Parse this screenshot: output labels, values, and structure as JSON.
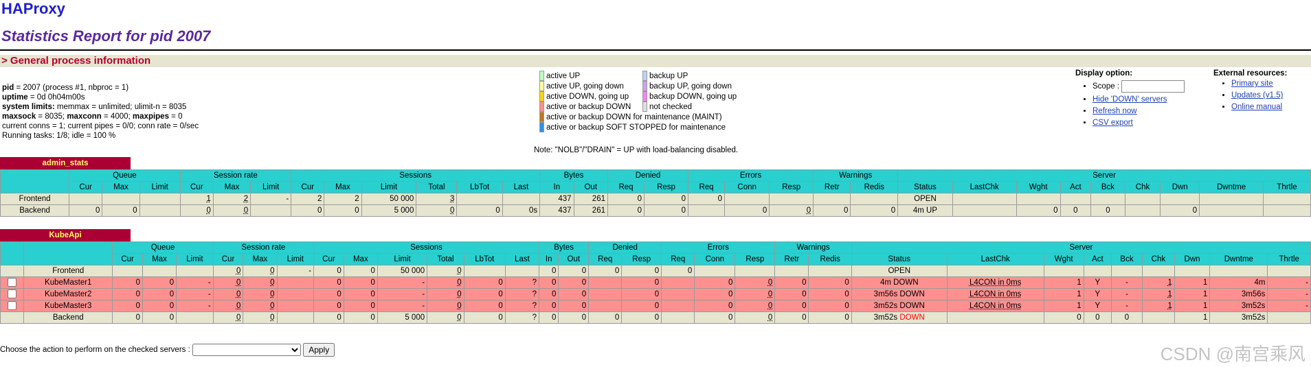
{
  "logo": "HAProxy",
  "title": "Statistics Report for pid 2007",
  "section": "> General process information",
  "info": [
    {
      "b": "pid",
      "t": " = 2007 (process #1, nbproc = 1)"
    },
    {
      "b": "uptime",
      "t": " = 0d 0h04m00s"
    },
    {
      "b": "system limits:",
      "t": " memmax = unlimited; ulimit-n = 8035"
    },
    {
      "b": "maxsock",
      "t": " = 8035; ",
      "b2": "maxconn",
      "t2": " = 4000; ",
      "b3": "maxpipes",
      "t3": " = 0"
    },
    {
      "t": "current conns = 1; current pipes = 0/0; conn rate = 0/sec"
    },
    {
      "t": "Running tasks: 1/8; idle = 100 %"
    }
  ],
  "legend_left": [
    {
      "label": "active UP",
      "color": "#c0ffc0"
    },
    {
      "label": "active UP, going down",
      "color": "#ffffa0"
    },
    {
      "label": "active DOWN, going up",
      "color": "#ffd020"
    },
    {
      "label": "active or backup DOWN",
      "color": "#ff9090"
    },
    {
      "label": "active or backup DOWN for maintenance (MAINT)",
      "color": "#c07820"
    },
    {
      "label": "active or backup SOFT STOPPED for maintenance",
      "color": "#3090e0"
    }
  ],
  "legend_right": [
    {
      "label": "backup UP",
      "color": "#c0d0ff"
    },
    {
      "label": "backup UP, going down",
      "color": "#d0a0ff"
    },
    {
      "label": "backup DOWN, going up",
      "color": "#ff80ff"
    },
    {
      "label": "not checked",
      "color": "#e0e0e0"
    }
  ],
  "legend_note": "Note: \"NOLB\"/\"DRAIN\" = UP with load-balancing disabled.",
  "display": {
    "heading": "Display option:",
    "scope_label": "Scope :",
    "scope_value": "",
    "links": [
      "Hide 'DOWN' servers",
      "Refresh now",
      "CSV export"
    ]
  },
  "external": {
    "heading": "External resources:",
    "links": [
      "Primary site",
      "Updates (v1.5)",
      "Online manual"
    ]
  },
  "proxies": [
    {
      "name": "admin_stats",
      "groups": [
        "Queue",
        "Session rate",
        "Sessions",
        "Bytes",
        "Denied",
        "Errors",
        "Warnings",
        "Server"
      ],
      "cols": [
        "Cur",
        "Max",
        "Limit",
        "Cur",
        "Max",
        "Limit",
        "Cur",
        "Max",
        "Limit",
        "Total",
        "LbTot",
        "Last",
        "In",
        "Out",
        "Req",
        "Resp",
        "Req",
        "Conn",
        "Resp",
        "Retr",
        "Redis",
        "Status",
        "LastChk",
        "Wght",
        "Act",
        "Bck",
        "Chk",
        "Dwn",
        "Dwntme",
        "Thrtle"
      ],
      "rows": [
        {
          "kind": "fe",
          "name": "Frontend",
          "cells": [
            "",
            "",
            "",
            "1",
            "2",
            "-",
            "2",
            "2",
            "50 000",
            "3",
            "",
            "",
            "437",
            "261",
            "0",
            "0",
            "0",
            "",
            "",
            "",
            "",
            "OPEN",
            "",
            "",
            "",
            "",
            "",
            "",
            "",
            ""
          ]
        },
        {
          "kind": "be",
          "name": "Backend",
          "cells": [
            "0",
            "0",
            "",
            "0",
            "0",
            "",
            "0",
            "0",
            "5 000",
            "0",
            "0",
            "0s",
            "437",
            "261",
            "0",
            "0",
            "",
            "0",
            "0",
            "0",
            "0",
            "4m UP",
            "",
            "0",
            "0",
            "0",
            "",
            "0",
            "",
            ""
          ]
        }
      ]
    },
    {
      "name": "KubeApi",
      "groups": [
        "Queue",
        "Session rate",
        "Sessions",
        "Bytes",
        "Denied",
        "Errors",
        "Warnings",
        "Server"
      ],
      "cols": [
        "Cur",
        "Max",
        "Limit",
        "Cur",
        "Max",
        "Limit",
        "Cur",
        "Max",
        "Limit",
        "Total",
        "LbTot",
        "Last",
        "In",
        "Out",
        "Req",
        "Resp",
        "Req",
        "Conn",
        "Resp",
        "Retr",
        "Redis",
        "Status",
        "LastChk",
        "Wght",
        "Act",
        "Bck",
        "Chk",
        "Dwn",
        "Dwntme",
        "Thrtle"
      ],
      "rows": [
        {
          "kind": "fe",
          "name": "Frontend",
          "cells": [
            "",
            "",
            "",
            "0",
            "0",
            "-",
            "0",
            "0",
            "50 000",
            "0",
            "",
            "",
            "0",
            "0",
            "0",
            "0",
            "0",
            "",
            "",
            "",
            "",
            "OPEN",
            "",
            "",
            "",
            "",
            "",
            "",
            "",
            ""
          ]
        },
        {
          "kind": "sv",
          "name": "KubeMaster1",
          "cells": [
            "0",
            "0",
            "-",
            "0",
            "0",
            "",
            "0",
            "0",
            "-",
            "0",
            "0",
            "?",
            "0",
            "0",
            "",
            "0",
            "",
            "0",
            "0",
            "0",
            "0",
            "4m DOWN",
            "L4CON in 0ms",
            "1",
            "Y",
            "-",
            "1",
            "1",
            "4m",
            "-"
          ]
        },
        {
          "kind": "sv",
          "name": "KubeMaster2",
          "cells": [
            "0",
            "0",
            "-",
            "0",
            "0",
            "",
            "0",
            "0",
            "-",
            "0",
            "0",
            "?",
            "0",
            "0",
            "",
            "0",
            "",
            "0",
            "0",
            "0",
            "0",
            "3m56s DOWN",
            "L4CON in 0ms",
            "1",
            "Y",
            "-",
            "1",
            "1",
            "3m56s",
            "-"
          ]
        },
        {
          "kind": "sv",
          "name": "KubeMaster3",
          "cells": [
            "0",
            "0",
            "-",
            "0",
            "0",
            "",
            "0",
            "0",
            "-",
            "0",
            "0",
            "?",
            "0",
            "0",
            "",
            "0",
            "",
            "0",
            "0",
            "0",
            "0",
            "3m52s DOWN",
            "L4CON in 0ms",
            "1",
            "Y",
            "-",
            "1",
            "1",
            "3m52s",
            "-"
          ]
        },
        {
          "kind": "be",
          "name": "Backend",
          "cells": [
            "0",
            "0",
            "",
            "0",
            "0",
            "",
            "0",
            "0",
            "5 000",
            "0",
            "0",
            "?",
            "0",
            "0",
            "0",
            "0",
            "",
            "0",
            "0",
            "0",
            "0",
            "3m52s DOWN",
            "",
            "0",
            "0",
            "0",
            "",
            "1",
            "3m52s",
            ""
          ]
        }
      ]
    }
  ],
  "action": {
    "label": "Choose the action to perform on the checked servers :",
    "select_value": "",
    "apply": "Apply"
  },
  "watermark": "CSDN @南宫乘风"
}
